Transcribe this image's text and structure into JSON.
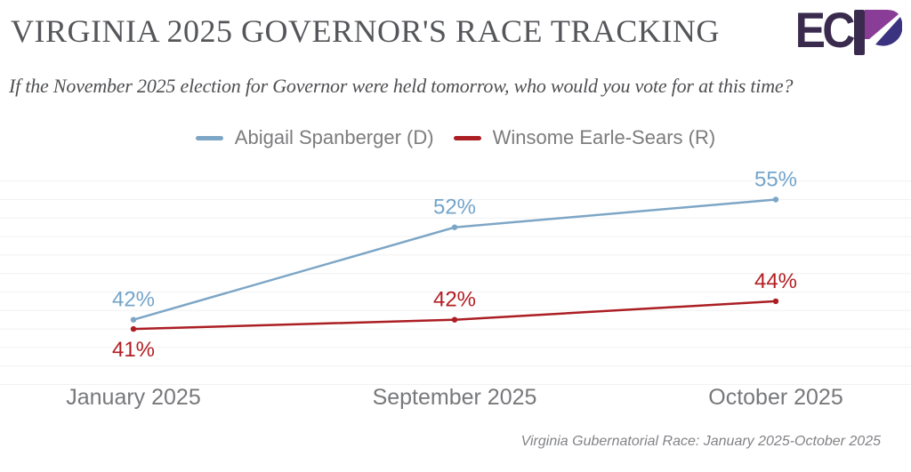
{
  "header": {
    "title": "VIRGINIA 2025 GOVERNOR'S RACE TRACKING",
    "logo": {
      "letters": "EC",
      "mark_letter": "P"
    }
  },
  "subtitle": "If the November 2025 election for Governor were held tomorrow, who would you vote for at this time?",
  "chart_data": {
    "type": "line",
    "title": "Virginia 2025 Governor's Race Tracking",
    "x": [
      "January 2025",
      "September 2025",
      "October 2025"
    ],
    "series": [
      {
        "name": "Abigail Spanberger (D)",
        "color": "#7da6c6",
        "label_color": "#74a4ca",
        "values": [
          42,
          52,
          55
        ],
        "labels": [
          "42%",
          "52%",
          "55%"
        ],
        "label_placement": [
          "above",
          "above",
          "above"
        ]
      },
      {
        "name": "Winsome Earle-Sears (R)",
        "color": "#ab1e23",
        "label_color": "#b21e23",
        "values": [
          41,
          42,
          44
        ],
        "labels": [
          "41%",
          "42%",
          "44%"
        ],
        "label_placement": [
          "below",
          "above",
          "above"
        ]
      }
    ],
    "ylim": [
      33.8,
      58.8
    ],
    "gridline_values": [
      35,
      37,
      39,
      41,
      43,
      45,
      47,
      49,
      51,
      53,
      55,
      57
    ],
    "grid": true,
    "grid_color": "#f1f1f2",
    "legend_position": "top"
  },
  "footer": {
    "source": "Virginia Gubernatorial Race: January 2025-October 2025"
  }
}
